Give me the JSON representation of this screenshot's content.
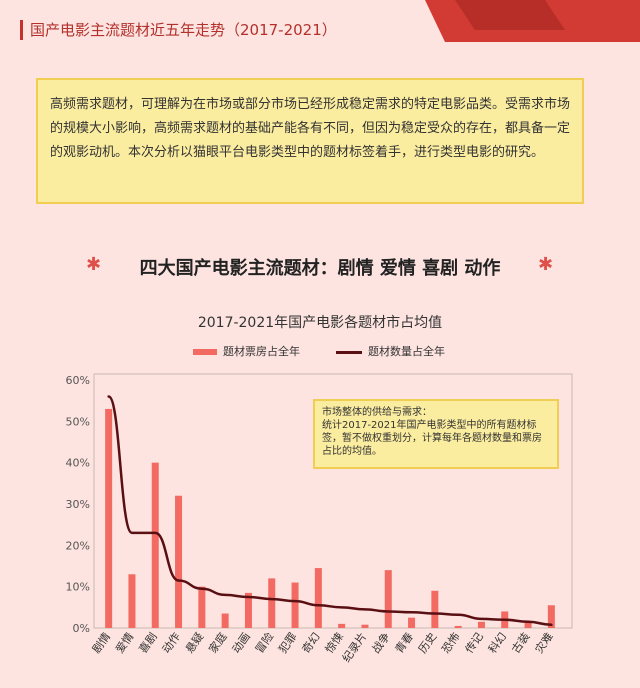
{
  "header": {
    "title": "国产电影主流题材近五年走势（2017-2021）"
  },
  "intro": {
    "text": "高频需求题材，可理解为在市场或部分市场已经形成稳定需求的特定电影品类。受需求市场的规模大小影响，高频需求题材的基础产能各有不同，但因为稳定受众的存在，都具备一定的观影动机。本次分析以猫眼平台电影类型中的题材标签着手，进行类型电影的研究。"
  },
  "section": {
    "title": "四大国产电影主流题材：剧情 爱情 喜剧 动作"
  },
  "note": {
    "heading": "市场整体的供给与需求：",
    "body": "统计2017-2021年国产电影类型中的所有题材标签，暂不做权重划分，计算每年各题材数量和票房占比的均值。"
  },
  "colors": {
    "bar": "#f26a61",
    "line": "#5a0f12",
    "accent": "#c9302c"
  },
  "chart_data": {
    "type": "bar",
    "title": "2017-2021年国产电影各题材市占均值",
    "categories": [
      "剧情",
      "爱情",
      "喜剧",
      "动作",
      "悬疑",
      "家庭",
      "动画",
      "冒险",
      "犯罪",
      "奇幻",
      "惊悚",
      "纪录片",
      "战争",
      "青春",
      "历史",
      "恐怖",
      "传记",
      "科幻",
      "古装",
      "灾难"
    ],
    "series": [
      {
        "name": "题材票房占全年",
        "type": "bar",
        "values": [
          53,
          13,
          40,
          32,
          10,
          3.5,
          8.5,
          12,
          11,
          14.5,
          1,
          0.8,
          14,
          2.5,
          9,
          0.5,
          1.5,
          4,
          1.5,
          5.5
        ]
      },
      {
        "name": "题材数量占全年",
        "type": "line",
        "values": [
          56,
          23,
          23,
          11.5,
          9.5,
          8,
          7.5,
          7,
          6.5,
          5.5,
          5,
          4.5,
          4,
          3.8,
          3.5,
          3.2,
          2.2,
          2,
          1.5,
          0.8
        ]
      }
    ],
    "yticks": [
      "0%",
      "10%",
      "20%",
      "30%",
      "40%",
      "50%",
      "60%"
    ],
    "ylim": [
      0,
      60
    ],
    "legend_position": "top",
    "grid": false
  }
}
